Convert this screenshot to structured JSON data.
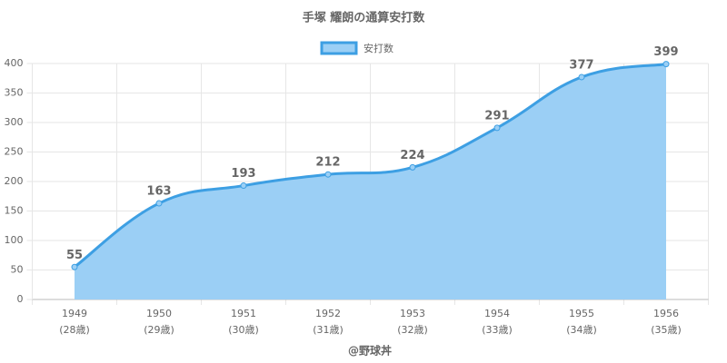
{
  "chart_data": {
    "type": "line",
    "title": "手塚 耀朗の通算安打数",
    "categories": [
      [
        "1949",
        "(28歳)"
      ],
      [
        "1950",
        "(29歳)"
      ],
      [
        "1951",
        "(30歳)"
      ],
      [
        "1952",
        "(31歳)"
      ],
      [
        "1953",
        "(32歳)"
      ],
      [
        "1954",
        "(33歳)"
      ],
      [
        "1955",
        "(34歳)"
      ],
      [
        "1956",
        "(35歳)"
      ]
    ],
    "series": [
      {
        "name": "安打数",
        "color": "#3d9fe3",
        "fill": "#9bcff5",
        "values": [
          55,
          163,
          193,
          212,
          224,
          291,
          377,
          399
        ]
      }
    ],
    "ylim": [
      0,
      400
    ],
    "yticks": [
      0,
      50,
      100,
      150,
      200,
      250,
      300,
      350,
      400
    ],
    "grid": true,
    "legend": "top",
    "source": "@野球丼"
  }
}
